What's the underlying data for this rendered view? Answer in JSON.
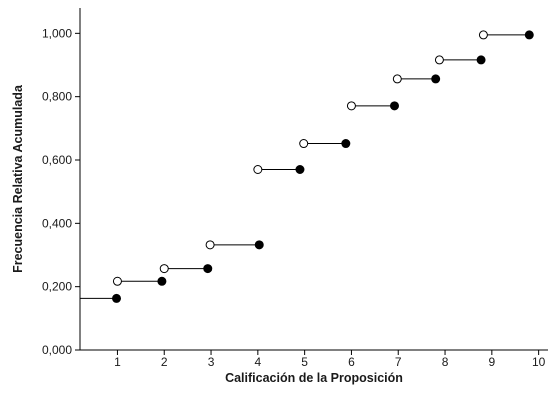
{
  "chart_data": {
    "type": "step",
    "xlabel": "Calificación de la Proposición",
    "ylabel": "Frecuencia Relativa Acumulada",
    "xlim": [
      0.2,
      10.2
    ],
    "ylim": [
      0,
      1.08
    ],
    "x_ticks": [
      1,
      2,
      3,
      4,
      5,
      6,
      7,
      8,
      9,
      10
    ],
    "x_tick_labels": [
      "1",
      "2",
      "3",
      "4",
      "5",
      "6",
      "7",
      "8",
      "9",
      "10"
    ],
    "y_ticks": [
      0,
      0.2,
      0.4,
      0.6,
      0.8,
      1.0
    ],
    "y_tick_labels": [
      "0,000",
      "0,200",
      "0,400",
      "0,600",
      "0,800",
      "1,000"
    ],
    "grid": false,
    "legend": false,
    "steps": [
      {
        "x_start": 0.2,
        "x_end": 0.98,
        "y": 0.163
      },
      {
        "x_start": 1.0,
        "x_end": 1.95,
        "y": 0.217
      },
      {
        "x_start": 2.0,
        "x_end": 2.93,
        "y": 0.257
      },
      {
        "x_start": 2.98,
        "x_end": 4.03,
        "y": 0.332
      },
      {
        "x_start": 4.0,
        "x_end": 4.9,
        "y": 0.57
      },
      {
        "x_start": 4.98,
        "x_end": 5.88,
        "y": 0.652
      },
      {
        "x_start": 6.0,
        "x_end": 6.92,
        "y": 0.771
      },
      {
        "x_start": 6.98,
        "x_end": 7.8,
        "y": 0.856
      },
      {
        "x_start": 7.88,
        "x_end": 8.77,
        "y": 0.916
      },
      {
        "x_start": 8.82,
        "x_end": 9.8,
        "y": 0.995
      }
    ],
    "colors": {
      "line": "#000000",
      "filled_marker": "#000000",
      "open_marker_fill": "#ffffff",
      "axis": "#000000"
    }
  }
}
